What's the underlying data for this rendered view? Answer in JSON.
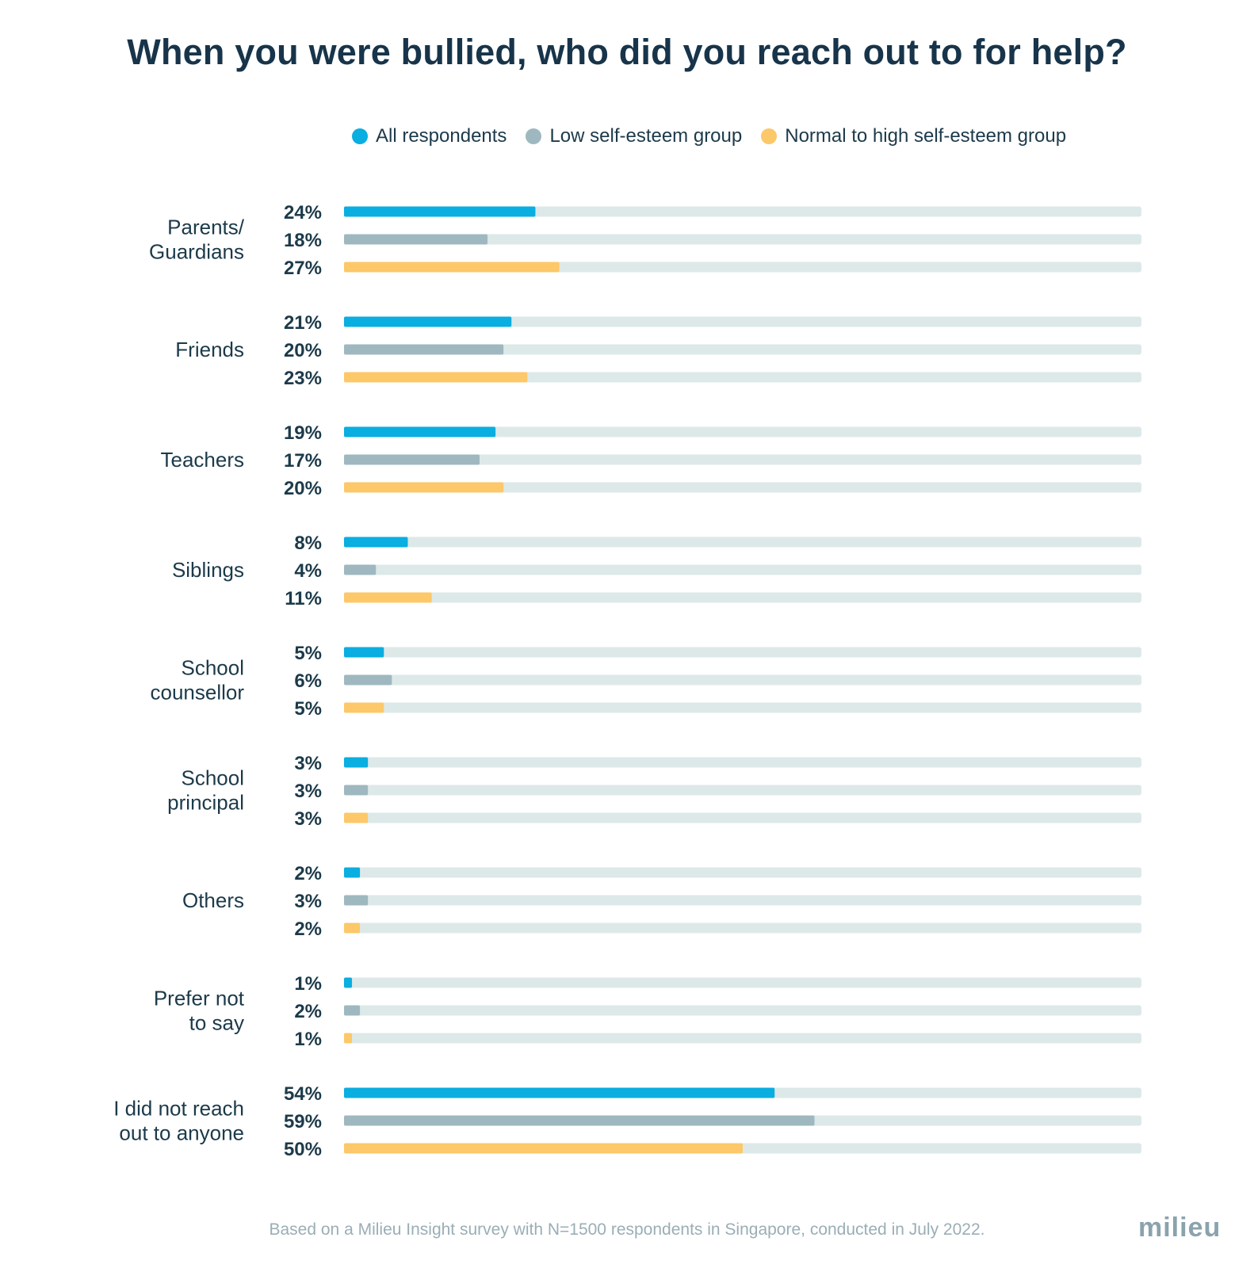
{
  "title": "When you were bullied, who did you reach out to for help?",
  "colors": {
    "all": "#0aaee0",
    "low": "#9fb8c0",
    "high": "#fcc869",
    "track": "#dde9e8",
    "text": "#1c3a4a"
  },
  "legend": [
    {
      "label": "All respondents",
      "color": "#0aaee0"
    },
    {
      "label": "Low self-esteem group",
      "color": "#9fb8c0"
    },
    {
      "label": "Normal to high self-esteem group",
      "color": "#fcc869"
    }
  ],
  "chart_data": {
    "type": "bar",
    "orientation": "horizontal",
    "title": "When you were bullied, who did you reach out to for help?",
    "xlim": [
      0,
      100
    ],
    "unit": "%",
    "categories": [
      [
        "Parents/",
        "Guardians"
      ],
      [
        "Friends"
      ],
      [
        "Teachers"
      ],
      [
        "Siblings"
      ],
      [
        "School",
        "counsellor"
      ],
      [
        "School",
        "principal"
      ],
      [
        "Others"
      ],
      [
        "Prefer not",
        "to say"
      ],
      [
        "I did not reach",
        "out to anyone"
      ]
    ],
    "series": [
      {
        "name": "All respondents",
        "values": [
          24,
          21,
          19,
          8,
          5,
          3,
          2,
          1,
          54
        ]
      },
      {
        "name": "Low self-esteem group",
        "values": [
          18,
          20,
          17,
          4,
          6,
          3,
          3,
          2,
          59
        ]
      },
      {
        "name": "Normal to high self-esteem group",
        "values": [
          27,
          23,
          20,
          11,
          5,
          3,
          2,
          1,
          50
        ]
      }
    ]
  },
  "footer": "Based on a Milieu Insight survey with N=1500 respondents in Singapore, conducted in July 2022.",
  "logo": "milieu"
}
